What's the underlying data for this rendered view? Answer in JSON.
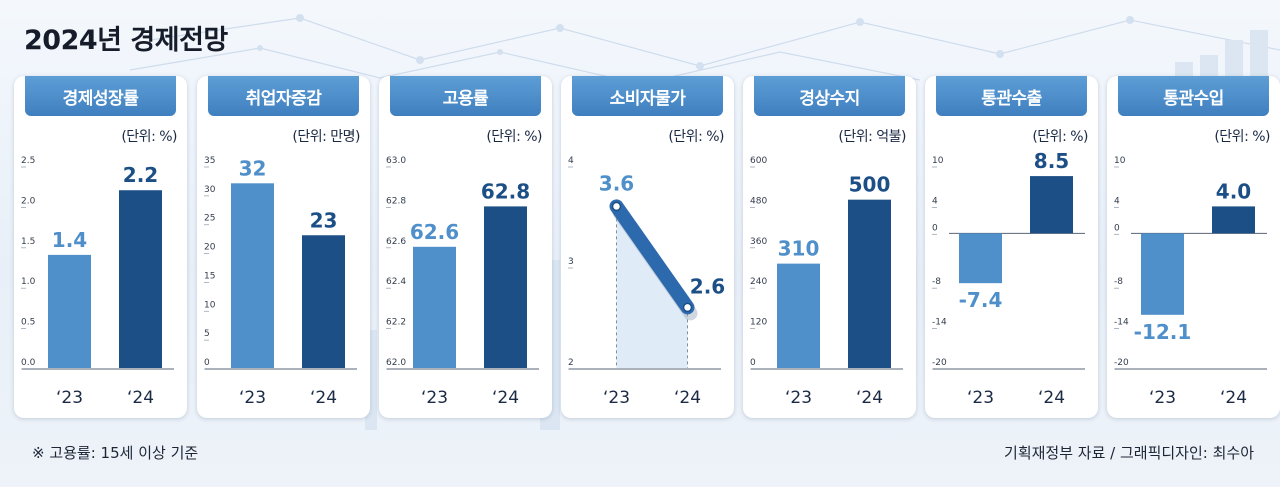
{
  "title": "2024년 경제전망",
  "footnote": "※ 고용률: 15세 이상 기준",
  "source": "기획재정부 자료 / 그래픽디자인: 최수아",
  "colors": {
    "bar2023": "#4f8fca",
    "bar2024": "#1c4f86",
    "label2023": "#4f8fca",
    "label2024": "#1c4f86",
    "tab": "#4a8ac9"
  },
  "chart_data": [
    {
      "type": "bar",
      "title": "경제성장률",
      "unit": "(단위: %)",
      "categories": [
        "‘23",
        "‘24"
      ],
      "values": [
        1.4,
        2.2
      ],
      "value_labels": [
        "1.4",
        "2.2"
      ],
      "yticks": [
        "2.5",
        "2.0",
        "1.5",
        "1.0",
        "0.5",
        "0.0"
      ],
      "ylim": [
        0,
        2.5
      ]
    },
    {
      "type": "bar",
      "title": "취업자증감",
      "unit": "(단위: 만명)",
      "categories": [
        "‘23",
        "‘24"
      ],
      "values": [
        32,
        23
      ],
      "value_labels": [
        "32",
        "23"
      ],
      "yticks": [
        "35",
        "30",
        "25",
        "20",
        "15",
        "10",
        "5",
        "0"
      ],
      "ylim": [
        0,
        35
      ]
    },
    {
      "type": "bar",
      "title": "고용률",
      "unit": "(단위: %)",
      "categories": [
        "‘23",
        "‘24"
      ],
      "values": [
        62.6,
        62.8
      ],
      "value_labels": [
        "62.6",
        "62.8"
      ],
      "yticks": [
        "63.0",
        "62.8",
        "62.6",
        "62.4",
        "62.2",
        "62.0"
      ],
      "ylim": [
        62.0,
        63.0
      ]
    },
    {
      "type": "line",
      "title": "소비자물가",
      "unit": "(단위: %)",
      "categories": [
        "‘23",
        "‘24"
      ],
      "values": [
        3.6,
        2.6
      ],
      "value_labels": [
        "3.6",
        "2.6"
      ],
      "yticks": [
        "4",
        "3",
        "2"
      ],
      "ylim": [
        2,
        4
      ]
    },
    {
      "type": "bar",
      "title": "경상수지",
      "unit": "(단위: 억불)",
      "categories": [
        "‘23",
        "‘24"
      ],
      "values": [
        310,
        500
      ],
      "value_labels": [
        "310",
        "500"
      ],
      "yticks": [
        "600",
        "480",
        "360",
        "240",
        "120",
        "0"
      ],
      "ylim": [
        0,
        600
      ]
    },
    {
      "type": "bar",
      "title": "통관수출",
      "unit": "(단위: %)",
      "categories": [
        "‘23",
        "‘24"
      ],
      "values": [
        -7.4,
        8.5
      ],
      "value_labels": [
        "-7.4",
        "8.5"
      ],
      "yticks": [
        "10",
        "4",
        "0",
        "-8",
        "-14",
        "-20"
      ],
      "ytick_values": [
        10,
        4,
        0,
        -8,
        -14,
        -20
      ],
      "ylim": [
        -20,
        10
      ]
    },
    {
      "type": "bar",
      "title": "통관수입",
      "unit": "(단위: %)",
      "categories": [
        "‘23",
        "‘24"
      ],
      "values": [
        -12.1,
        4.0
      ],
      "value_labels": [
        "-12.1",
        "4.0"
      ],
      "yticks": [
        "10",
        "4",
        "0",
        "-8",
        "-14",
        "-20"
      ],
      "ytick_values": [
        10,
        4,
        0,
        -8,
        -14,
        -20
      ],
      "ylim": [
        -20,
        10
      ]
    }
  ]
}
